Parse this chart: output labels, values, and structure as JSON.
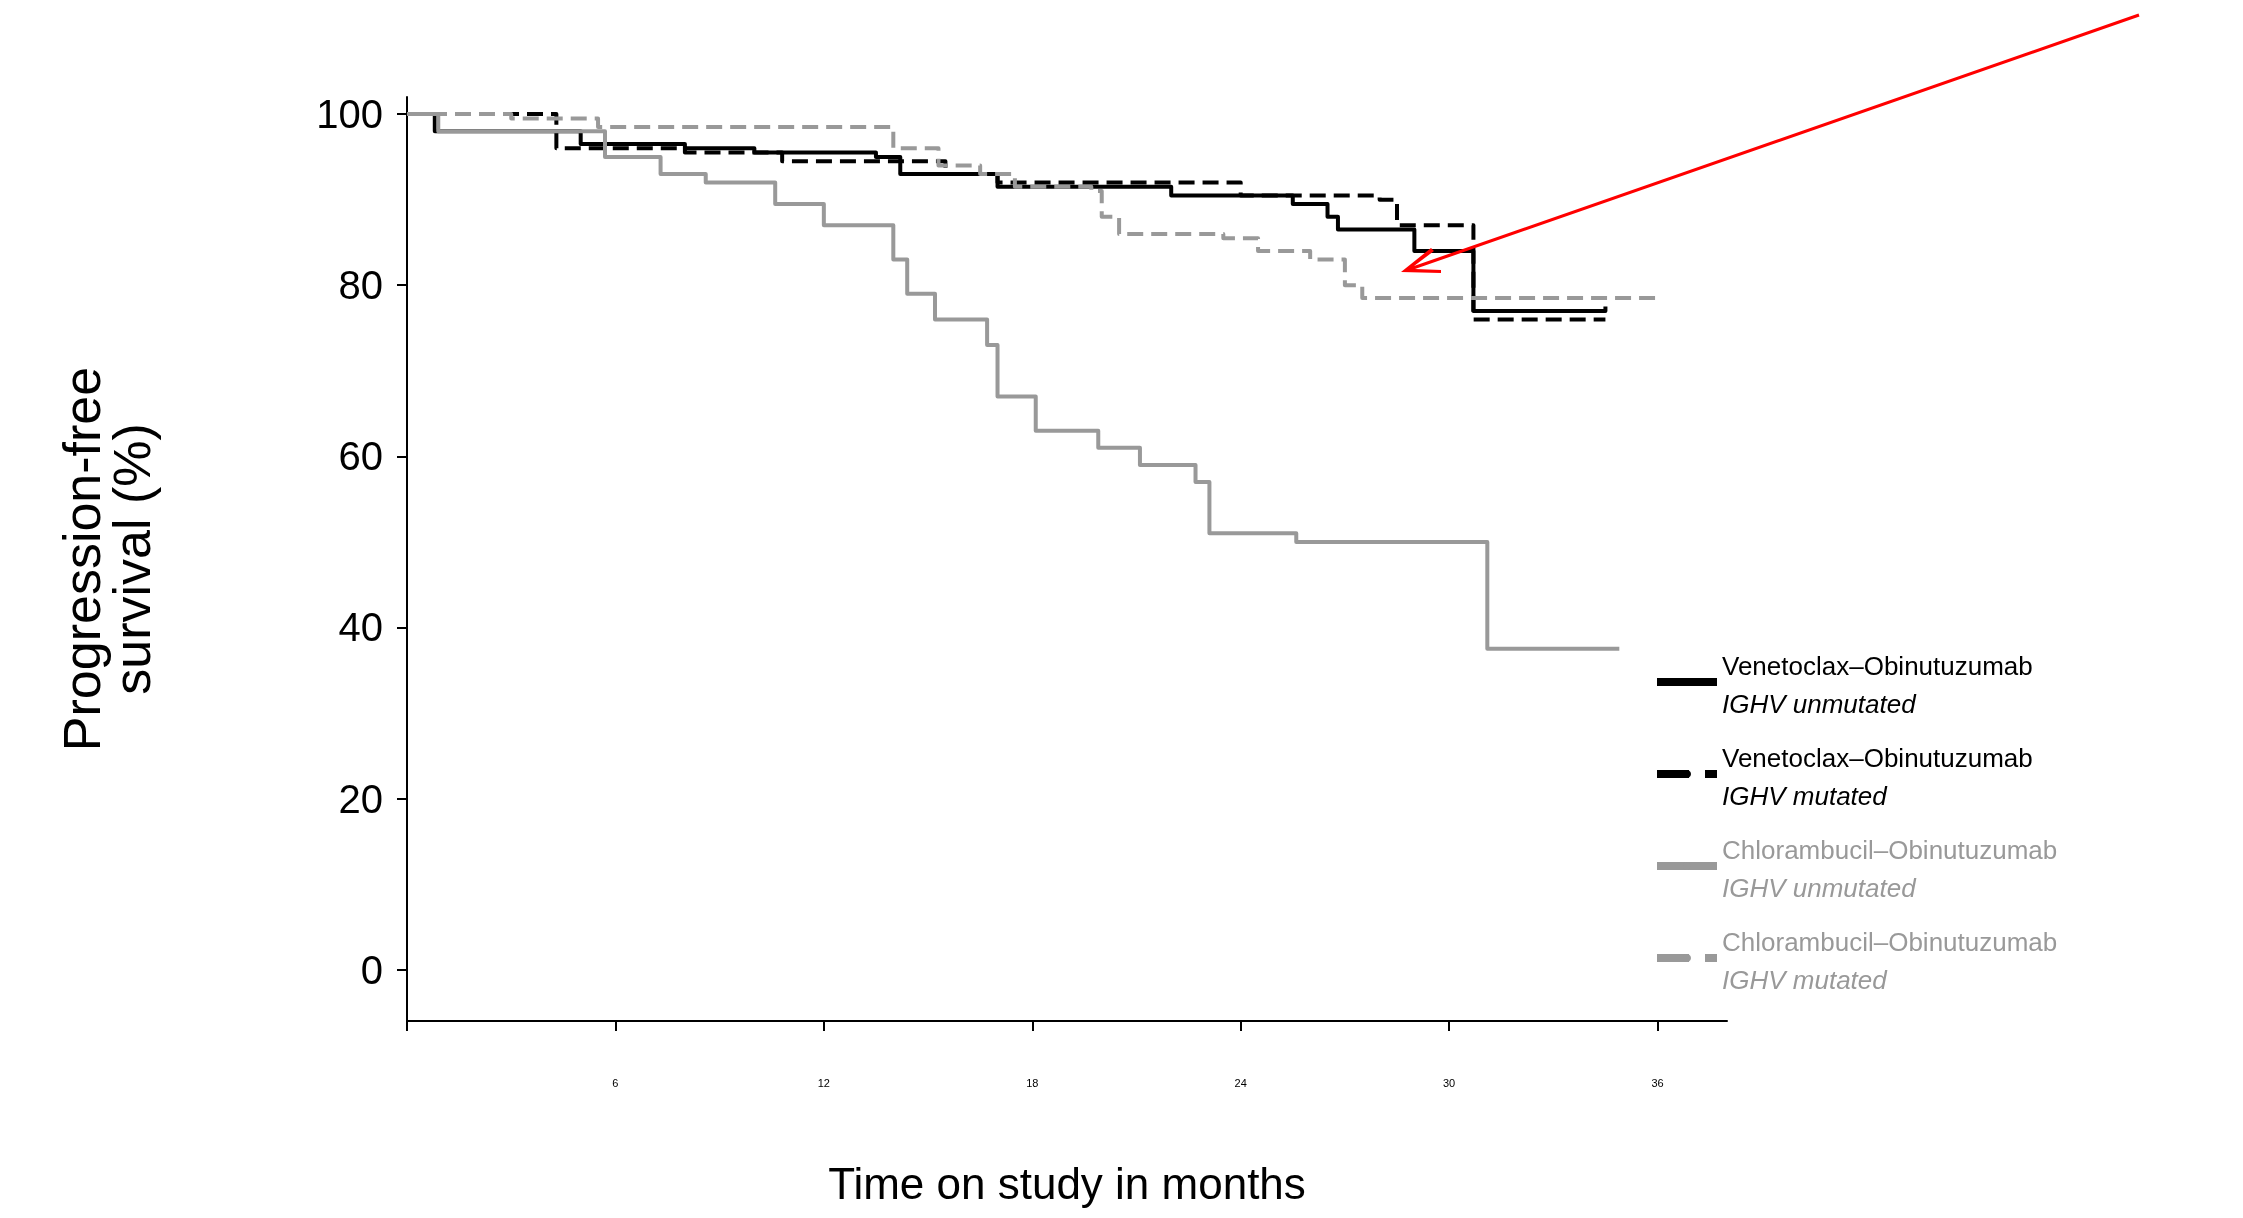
{
  "chart_data": {
    "type": "step",
    "xlabel": "Time on study in months",
    "ylabel": "Progression-free\nsurvival (%)",
    "xlim": [
      0,
      38
    ],
    "xticks": [
      {
        "value": 0,
        "label": null
      },
      6,
      12,
      18,
      24,
      30,
      36
    ],
    "ylim": [
      -6,
      102
    ],
    "yticks": [
      0,
      20,
      40,
      60,
      80,
      100
    ],
    "legend": "bottom right",
    "series": [
      {
        "name": "Venetoclax–Obinutuzumab\nIGHV unmutated",
        "color": "#000000",
        "line_style": "solid",
        "x": [
          0,
          0.8,
          5,
          8,
          10,
          13.5,
          14.2,
          17,
          22,
          25.5,
          26.5,
          26.8,
          29,
          30.7,
          30.7,
          34.5
        ],
        "values": [
          100,
          98,
          96.5,
          96,
          95.5,
          95,
          93,
          91.5,
          90.5,
          89.5,
          88,
          86.5,
          84,
          83,
          77,
          77.5
        ]
      },
      {
        "name": "Venetoclax–Obinutuzumab\nIGHV mutated",
        "color": "#000000",
        "line_style": "dashed",
        "x": [
          0,
          4.3,
          8,
          10.8,
          15.5,
          17,
          24,
          28,
          28.5,
          30.7,
          34.5
        ],
        "values": [
          100,
          96,
          95.5,
          94.5,
          93,
          92,
          90.5,
          90,
          87,
          76,
          76
        ]
      },
      {
        "name": "Chlorambucil–Obinutuzumab\nIGHV unmutated",
        "color": "#999999",
        "line_style": "solid",
        "x": [
          0,
          0.9,
          5.7,
          7.3,
          8.6,
          10.6,
          12,
          14,
          14.4,
          15.2,
          16.7,
          17,
          18.1,
          19.9,
          21.1,
          22.7,
          23.1,
          25.6,
          31.1,
          34.9
        ],
        "values": [
          100,
          98,
          95,
          93,
          92,
          89.5,
          87,
          83,
          79,
          76,
          73,
          67,
          63,
          61,
          59,
          57,
          51,
          50,
          37.5,
          37.5
        ]
      },
      {
        "name": "Chlorambucil–Obinutuzumab\nIGHV mutated",
        "color": "#999999",
        "line_style": "dashed",
        "x": [
          0,
          3,
          5.5,
          14,
          15.3,
          16.5,
          17.5,
          19.7,
          20,
          20.5,
          23.5,
          24.5,
          26,
          27,
          27.5,
          36
        ],
        "values": [
          100,
          99.5,
          98.5,
          96,
          94,
          93,
          91.5,
          91,
          88,
          86,
          85.5,
          84,
          83,
          80,
          78.5,
          78.5
        ]
      }
    ]
  }
}
